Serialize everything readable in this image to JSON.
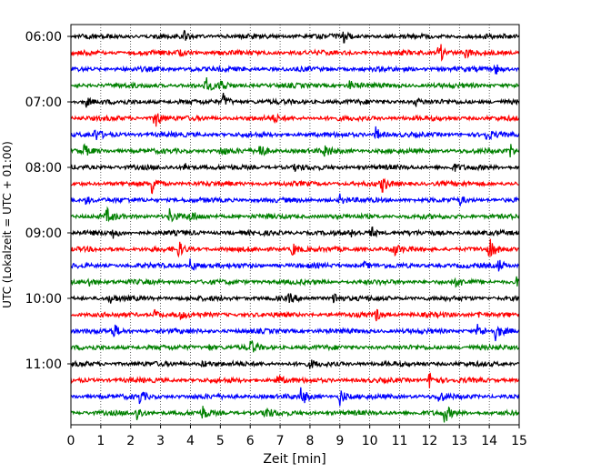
{
  "chart_data": {
    "type": "line",
    "title": "",
    "xlabel": "Zeit  [min]",
    "ylabel": "UTC (Lokalzeit = UTC + 01:00)",
    "xlim": [
      0,
      15
    ],
    "xticks": [
      0,
      1,
      2,
      3,
      4,
      5,
      6,
      7,
      8,
      9,
      10,
      11,
      12,
      13,
      14,
      15
    ],
    "xtick_labels": [
      "0",
      "1",
      "2",
      "3",
      "4",
      "5",
      "6",
      "7",
      "8",
      "9",
      "10",
      "11",
      "12",
      "13",
      "14",
      "15"
    ],
    "ytick_labels": [
      "06:00",
      "07:00",
      "08:00",
      "09:00",
      "10:00",
      "11:00"
    ],
    "minutes_per_line": 15,
    "grid": "vertical dotted lines at each minute",
    "trace_colors": [
      "#000000",
      "#ff0000",
      "#0000ff",
      "#008000"
    ],
    "series": [
      {
        "start": "06:00",
        "color": "#000000",
        "events": [
          [
            3.8,
            0.5
          ],
          [
            9.1,
            0.9
          ]
        ]
      },
      {
        "start": "06:15",
        "color": "#ff0000",
        "events": [
          [
            3.6,
            0.4
          ],
          [
            12.3,
            1.6
          ],
          [
            13.2,
            0.5
          ]
        ]
      },
      {
        "start": "06:30",
        "color": "#0000ff",
        "events": [
          [
            4.0,
            0.3
          ],
          [
            14.2,
            0.7
          ]
        ]
      },
      {
        "start": "06:45",
        "color": "#008000",
        "events": [
          [
            4.5,
            1.0
          ],
          [
            5.0,
            0.8
          ],
          [
            9.3,
            0.6
          ]
        ]
      },
      {
        "start": "07:00",
        "color": "#000000",
        "events": [
          [
            0.5,
            0.6
          ],
          [
            5.1,
            1.0
          ],
          [
            11.5,
            0.5
          ]
        ]
      },
      {
        "start": "07:15",
        "color": "#ff0000",
        "events": [
          [
            2.8,
            1.6
          ],
          [
            6.8,
            0.4
          ]
        ]
      },
      {
        "start": "07:30",
        "color": "#0000ff",
        "events": [
          [
            0.8,
            0.7
          ],
          [
            10.2,
            0.9
          ],
          [
            13.9,
            0.6
          ]
        ]
      },
      {
        "start": "07:45",
        "color": "#008000",
        "events": [
          [
            0.4,
            0.8
          ],
          [
            5.0,
            0.6
          ],
          [
            6.3,
            1.1
          ],
          [
            8.5,
            0.8
          ],
          [
            14.7,
            0.8
          ]
        ]
      },
      {
        "start": "08:00",
        "color": "#000000",
        "events": [
          [
            3.8,
            0.5
          ],
          [
            7.5,
            0.3
          ],
          [
            12.8,
            0.4
          ]
        ]
      },
      {
        "start": "08:15",
        "color": "#ff0000",
        "events": [
          [
            2.7,
            1.3
          ],
          [
            10.4,
            1.0
          ]
        ]
      },
      {
        "start": "08:30",
        "color": "#0000ff",
        "events": [
          [
            0.5,
            0.5
          ],
          [
            9.0,
            0.6
          ],
          [
            13.0,
            0.5
          ]
        ]
      },
      {
        "start": "08:45",
        "color": "#008000",
        "events": [
          [
            1.2,
            0.9
          ],
          [
            3.3,
            0.9
          ],
          [
            4.0,
            0.6
          ]
        ]
      },
      {
        "start": "09:00",
        "color": "#000000",
        "events": [
          [
            1.4,
            0.6
          ],
          [
            10.0,
            1.0
          ],
          [
            9.4,
            0.4
          ]
        ]
      },
      {
        "start": "09:15",
        "color": "#ff0000",
        "events": [
          [
            3.6,
            0.9
          ],
          [
            7.4,
            0.9
          ],
          [
            10.8,
            0.8
          ],
          [
            14.0,
            1.3
          ]
        ]
      },
      {
        "start": "09:30",
        "color": "#0000ff",
        "events": [
          [
            4.0,
            1.0
          ],
          [
            9.8,
            0.4
          ],
          [
            14.3,
            0.8
          ]
        ]
      },
      {
        "start": "09:45",
        "color": "#008000",
        "events": [
          [
            0.6,
            0.6
          ],
          [
            12.9,
            0.5
          ],
          [
            14.9,
            0.6
          ]
        ]
      },
      {
        "start": "10:00",
        "color": "#000000",
        "events": [
          [
            1.3,
            0.5
          ],
          [
            7.3,
            0.5
          ],
          [
            8.8,
            0.9
          ]
        ]
      },
      {
        "start": "10:15",
        "color": "#ff0000",
        "events": [
          [
            2.8,
            0.6
          ],
          [
            3.6,
            0.5
          ],
          [
            10.2,
            0.8
          ],
          [
            13.6,
            0.6
          ]
        ]
      },
      {
        "start": "10:30",
        "color": "#0000ff",
        "events": [
          [
            1.4,
            1.0
          ],
          [
            13.6,
            0.9
          ],
          [
            14.2,
            1.0
          ]
        ]
      },
      {
        "start": "10:45",
        "color": "#008000",
        "events": [
          [
            4.6,
            0.4
          ],
          [
            6.0,
            0.9
          ]
        ]
      },
      {
        "start": "11:00",
        "color": "#000000",
        "events": [
          [
            4.4,
            0.5
          ],
          [
            8.0,
            0.4
          ]
        ]
      },
      {
        "start": "11:15",
        "color": "#ff0000",
        "events": [
          [
            6.9,
            0.7
          ],
          [
            12.0,
            1.2
          ]
        ]
      },
      {
        "start": "11:30",
        "color": "#0000ff",
        "events": [
          [
            2.3,
            0.8
          ],
          [
            7.7,
            1.2
          ],
          [
            9.0,
            1.1
          ],
          [
            12.3,
            0.8
          ]
        ]
      },
      {
        "start": "11:45",
        "color": "#008000",
        "events": [
          [
            2.2,
            1.0
          ],
          [
            4.4,
            0.8
          ],
          [
            6.5,
            0.8
          ],
          [
            12.5,
            1.2
          ]
        ]
      }
    ]
  }
}
